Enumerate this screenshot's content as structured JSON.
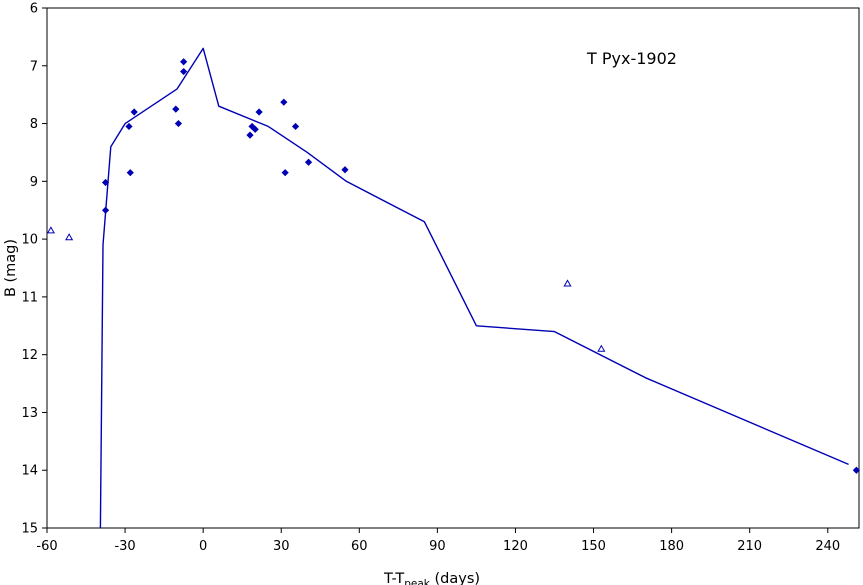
{
  "chart_data": {
    "type": "scatter",
    "title": "T Pyx-1902",
    "xlabel": {
      "main": "T-T",
      "sub": "peak",
      "suffix": " (days)"
    },
    "ylabel": "B (mag)",
    "xlim": [
      -60,
      252
    ],
    "ylim": [
      6,
      15
    ],
    "y_inverted": true,
    "xticks": [
      -60,
      -30,
      0,
      30,
      60,
      90,
      120,
      150,
      180,
      210,
      240
    ],
    "yticks": [
      6,
      7,
      8,
      9,
      10,
      11,
      12,
      13,
      14,
      15
    ],
    "grid": false,
    "legend": "none",
    "color": "#0000b4",
    "series": [
      {
        "marker": "diamond",
        "points": [
          [
            -37.5,
            9.02
          ],
          [
            -37.5,
            9.5
          ],
          [
            -26.5,
            7.8
          ],
          [
            -28,
            8.85
          ],
          [
            -28.5,
            8.05
          ],
          [
            -10.5,
            7.75
          ],
          [
            -9.5,
            8.0
          ],
          [
            -7.5,
            6.93
          ],
          [
            -7.5,
            7.1
          ],
          [
            18,
            8.2
          ],
          [
            18.8,
            8.05
          ],
          [
            20,
            8.1
          ],
          [
            21.5,
            7.8
          ],
          [
            31,
            7.63
          ],
          [
            31.5,
            8.85
          ],
          [
            35.5,
            8.05
          ],
          [
            40.5,
            8.67
          ],
          [
            54.5,
            8.8
          ],
          [
            251,
            14.0
          ]
        ]
      },
      {
        "marker": "triangle",
        "points": [
          [
            -58.5,
            9.85
          ],
          [
            -51.5,
            9.97
          ],
          [
            140,
            10.77
          ],
          [
            153,
            11.9
          ]
        ]
      },
      {
        "marker": "line",
        "points": [
          [
            -39.5,
            15
          ],
          [
            -38.5,
            10.1
          ],
          [
            -35.5,
            8.4
          ],
          [
            -30,
            8.0
          ],
          [
            -10,
            7.4
          ],
          [
            0,
            6.7
          ],
          [
            6,
            7.7
          ],
          [
            25,
            8.05
          ],
          [
            40,
            8.5
          ],
          [
            55,
            9.0
          ],
          [
            85,
            9.7
          ],
          [
            105,
            11.5
          ],
          [
            135,
            11.6
          ],
          [
            170,
            12.4
          ],
          [
            248,
            13.9
          ]
        ]
      }
    ]
  }
}
